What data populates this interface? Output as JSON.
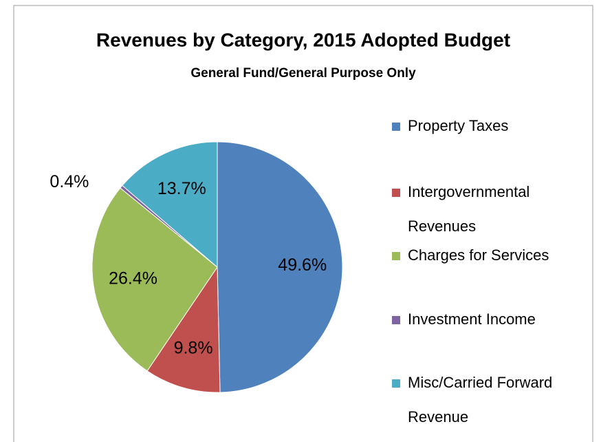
{
  "chart_data": {
    "type": "pie",
    "title": "Revenues by Category, 2015 Adopted Budget",
    "subtitle": "General Fund/General Purpose Only",
    "categories": [
      "Property Taxes",
      "Intergovernmental Revenues",
      "Charges for Services",
      "Investment Income",
      "Misc/Carried Forward Revenue"
    ],
    "values": [
      49.6,
      9.8,
      26.4,
      0.4,
      13.7
    ],
    "value_labels": [
      "49.6%",
      "9.8%",
      "26.4%",
      "0.4%",
      "13.7%"
    ],
    "colors": [
      "#4f81bd",
      "#c0504d",
      "#9bbb59",
      "#8064a2",
      "#4bacc6"
    ],
    "legend": "right"
  }
}
